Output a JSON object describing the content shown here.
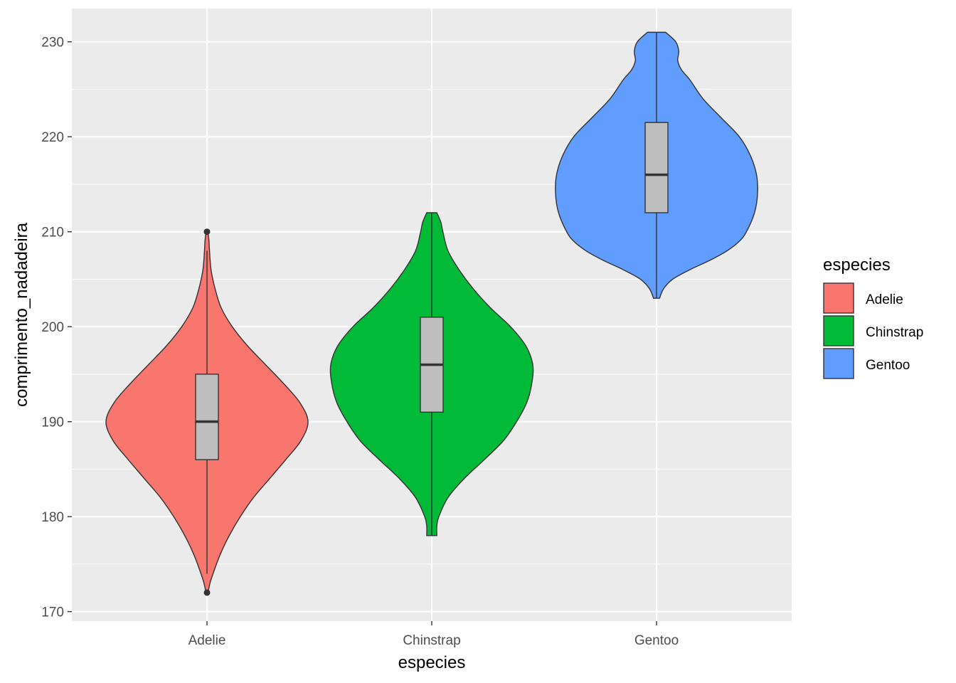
{
  "chart_data": {
    "type": "violin",
    "xlabel": "especies",
    "ylabel": "comprimento_nadadeira",
    "ylim": [
      169,
      233.5
    ],
    "yticks": [
      170,
      180,
      190,
      200,
      210,
      220,
      230
    ],
    "grid": true,
    "background": "#ebebeb",
    "legend": {
      "title": "especies",
      "position": "right"
    },
    "categories": [
      "Adelie",
      "Chinstrap",
      "Gentoo"
    ],
    "series": [
      {
        "name": "Adelie",
        "color": "#f8766d",
        "violin_range": [
          172,
          210
        ],
        "density_profile": [
          [
            172,
            0.01
          ],
          [
            173,
            0.03
          ],
          [
            174,
            0.06
          ],
          [
            176,
            0.13
          ],
          [
            178,
            0.22
          ],
          [
            180,
            0.33
          ],
          [
            182,
            0.46
          ],
          [
            184,
            0.62
          ],
          [
            186,
            0.78
          ],
          [
            188,
            0.93
          ],
          [
            190,
            1.0
          ],
          [
            192,
            0.92
          ],
          [
            194,
            0.76
          ],
          [
            196,
            0.58
          ],
          [
            198,
            0.4
          ],
          [
            200,
            0.25
          ],
          [
            202,
            0.14
          ],
          [
            204,
            0.08
          ],
          [
            206,
            0.04
          ],
          [
            208,
            0.025
          ],
          [
            209,
            0.02
          ],
          [
            210,
            0.01
          ]
        ],
        "box": {
          "min": 174,
          "q1": 186,
          "median": 190,
          "q3": 195,
          "max": 208
        },
        "outliers": [
          172,
          210
        ]
      },
      {
        "name": "Chinstrap",
        "color": "#00ba38",
        "violin_range": [
          178,
          212
        ],
        "density_profile": [
          [
            178,
            0.05
          ],
          [
            179,
            0.05
          ],
          [
            180,
            0.07
          ],
          [
            182,
            0.16
          ],
          [
            184,
            0.32
          ],
          [
            186,
            0.52
          ],
          [
            188,
            0.71
          ],
          [
            190,
            0.84
          ],
          [
            192,
            0.94
          ],
          [
            194,
            0.99
          ],
          [
            196,
            1.0
          ],
          [
            198,
            0.93
          ],
          [
            200,
            0.78
          ],
          [
            202,
            0.58
          ],
          [
            204,
            0.41
          ],
          [
            206,
            0.27
          ],
          [
            208,
            0.16
          ],
          [
            210,
            0.11
          ],
          [
            211,
            0.09
          ],
          [
            212,
            0.05
          ]
        ],
        "box": {
          "min": 178,
          "q1": 191,
          "median": 196,
          "q3": 201,
          "max": 212
        },
        "outliers": []
      },
      {
        "name": "Gentoo",
        "color": "#619cff",
        "violin_range": [
          203,
          231
        ],
        "density_profile": [
          [
            203,
            0.03
          ],
          [
            204,
            0.07
          ],
          [
            205,
            0.16
          ],
          [
            206,
            0.33
          ],
          [
            207,
            0.53
          ],
          [
            208,
            0.7
          ],
          [
            209,
            0.82
          ],
          [
            210,
            0.89
          ],
          [
            212,
            0.97
          ],
          [
            214,
            1.0
          ],
          [
            216,
            0.99
          ],
          [
            218,
            0.93
          ],
          [
            220,
            0.82
          ],
          [
            222,
            0.64
          ],
          [
            224,
            0.46
          ],
          [
            226,
            0.33
          ],
          [
            227,
            0.25
          ],
          [
            228,
            0.21
          ],
          [
            229,
            0.22
          ],
          [
            230,
            0.19
          ],
          [
            231,
            0.09
          ]
        ],
        "box": {
          "min": 203,
          "q1": 212,
          "median": 216,
          "q3": 221.5,
          "max": 231
        },
        "outliers": []
      }
    ]
  }
}
